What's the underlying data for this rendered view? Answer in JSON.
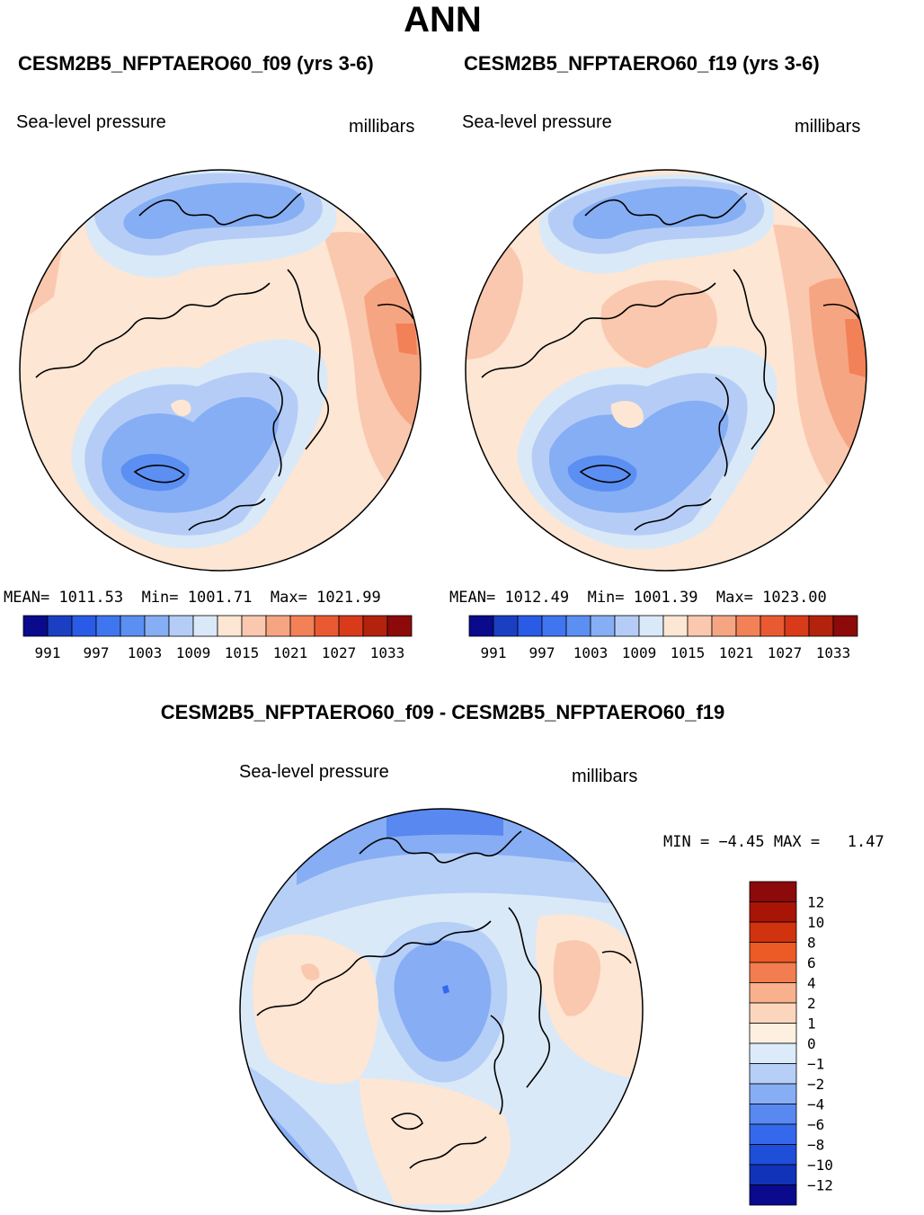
{
  "title": "ANN",
  "panels": {
    "left": {
      "title": "CESM2B5_NFPTAERO60_f09 (yrs 3-6)",
      "variable": "Sea-level pressure",
      "units": "millibars",
      "mean_label": "MEAN=",
      "mean": "1011.53",
      "min_label": "Min=",
      "min": "1001.71",
      "max_label": "Max=",
      "max": "1021.99"
    },
    "right": {
      "title": "CESM2B5_NFPTAERO60_f19 (yrs 3-6)",
      "variable": "Sea-level pressure",
      "units": "millibars",
      "mean_label": "MEAN=",
      "mean": "1012.49",
      "min_label": "Min=",
      "min": "1001.39",
      "max_label": "Max=",
      "max": "1023.00"
    },
    "diff": {
      "title": "CESM2B5_NFPTAERO60_f09 - CESM2B5_NFPTAERO60_f19",
      "variable": "Sea-level pressure",
      "units": "millibars",
      "min_label": "MIN =",
      "min": "−4.45",
      "max_label": "MAX =",
      "max": "1.47"
    }
  },
  "colorbar_abs": {
    "colors": [
      "#0a0a8c",
      "#1a3fc2",
      "#2a5be6",
      "#3f76f0",
      "#5b8ff2",
      "#86aef4",
      "#b5cdf6",
      "#dae9f8",
      "#fde6d3",
      "#fac8ae",
      "#f6a582",
      "#f28158",
      "#ea5a32",
      "#d83a1a",
      "#b3220d",
      "#8c0a0a"
    ],
    "tick_labels": [
      "991",
      "997",
      "1003",
      "1009",
      "1015",
      "1021",
      "1027",
      "1033"
    ]
  },
  "colorbar_diff": {
    "colors": [
      "#0a0a8c",
      "#1133b8",
      "#1f4ed8",
      "#3569ec",
      "#5888f0",
      "#87adf4",
      "#b6cff7",
      "#dcebf9",
      "#fdf0e0",
      "#fbd6bc",
      "#f8b18c",
      "#f27d50",
      "#ec5a26",
      "#d0330e",
      "#a81506",
      "#8c0a0a"
    ],
    "tick_labels": [
      "12",
      "10",
      "8",
      "6",
      "4",
      "2",
      "1",
      "0",
      "−1",
      "−2",
      "−4",
      "−6",
      "−8",
      "−10",
      "−12"
    ]
  },
  "map_colors": {
    "beige": "#fde6d3",
    "salmon": "#fac8ae",
    "orange": "#f6a582",
    "orange2": "#f28158",
    "lightblue": "#dae9f8",
    "blue1": "#b5cdf6",
    "blue2": "#86aef4",
    "blue3": "#5b8ff2",
    "blue4": "#3f76f0",
    "diff_blue1": "#b6cff7",
    "diff_blue2": "#87adf4",
    "diff_blue3": "#5888f0"
  }
}
